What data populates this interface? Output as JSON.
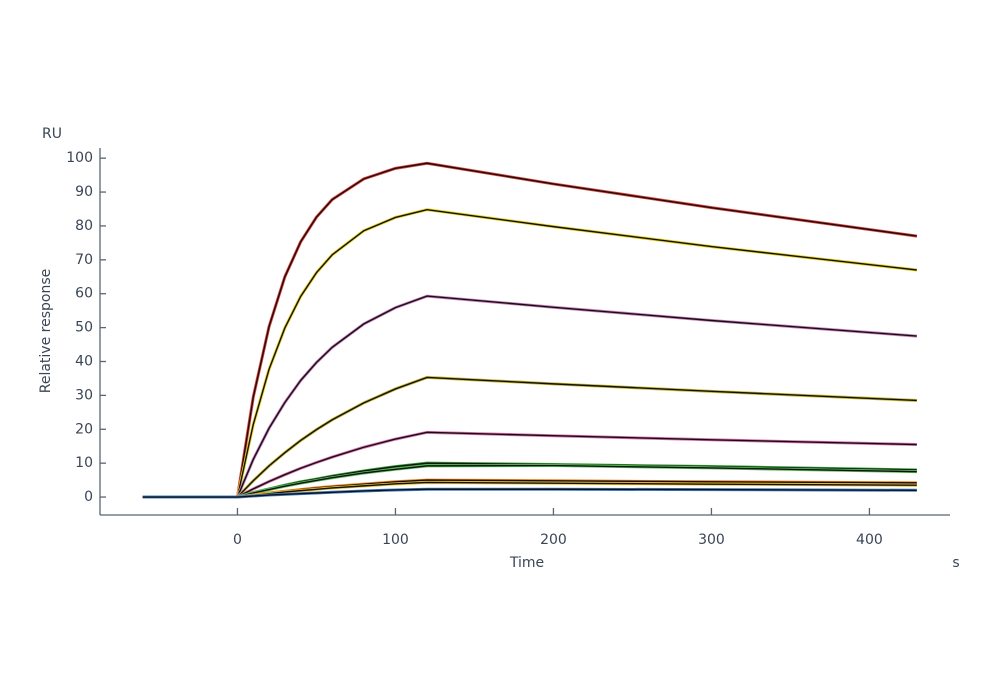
{
  "chart_data": {
    "type": "line",
    "y_unit": "RU",
    "y_label": "Relative response",
    "x_label": "Time",
    "x_unit": "s",
    "x": [
      -60,
      0,
      10,
      20,
      30,
      40,
      50,
      60,
      80,
      100,
      120,
      200,
      300,
      430
    ],
    "xlim": [
      -87,
      451
    ],
    "xticks": [
      0,
      100,
      200,
      300,
      400
    ],
    "ylim": [
      -5,
      103
    ],
    "yticks": [
      0,
      10,
      20,
      30,
      40,
      50,
      60,
      70,
      80,
      90,
      100
    ],
    "fit_color": "#111111",
    "series": [
      {
        "color": "#e8403a",
        "values": [
          0,
          0,
          29.5,
          50.3,
          65.0,
          75.3,
          82.6,
          87.8,
          93.9,
          97.0,
          98.5,
          92.4,
          85.4,
          77.0
        ]
      },
      {
        "color": "#e6d020",
        "values": [
          0,
          0,
          21.4,
          37.7,
          49.9,
          59.2,
          66.2,
          71.5,
          78.6,
          82.5,
          84.8,
          79.8,
          73.9,
          67.0
        ]
      },
      {
        "color": "#d080c0",
        "values": [
          0,
          0,
          11.1,
          20.3,
          27.9,
          34.4,
          39.7,
          44.2,
          51.1,
          55.9,
          59.3,
          56.0,
          52.1,
          47.5
        ]
      },
      {
        "color": "#c8b830",
        "values": [
          0,
          0,
          4.8,
          9.2,
          13.1,
          16.7,
          19.9,
          22.8,
          27.8,
          31.9,
          35.3,
          33.4,
          31.2,
          28.5
        ]
      },
      {
        "color": "#e070b0",
        "values": [
          0,
          0,
          2.4,
          4.6,
          6.6,
          8.5,
          10.2,
          11.8,
          14.7,
          17.1,
          19.1,
          18.1,
          16.9,
          15.5
        ]
      },
      {
        "color": "#30a030",
        "values": [
          0,
          0,
          1.3,
          2.4,
          3.5,
          4.5,
          5.3,
          6.2,
          7.7,
          9.0,
          10.0,
          9.6,
          9.0,
          8.0
        ]
      },
      {
        "color": "#60c060",
        "values": [
          0,
          0,
          1.2,
          2.2,
          3.2,
          4.1,
          4.9,
          5.7,
          7.1,
          8.2,
          9.2,
          9.3,
          8.6,
          7.5
        ]
      },
      {
        "color": "#f08020",
        "values": [
          0,
          0,
          0.6,
          1.2,
          1.7,
          2.2,
          2.7,
          3.1,
          3.8,
          4.5,
          5.0,
          4.8,
          4.5,
          4.2
        ]
      },
      {
        "color": "#e8c030",
        "values": [
          0,
          0,
          0.5,
          1.0,
          1.5,
          1.9,
          2.3,
          2.7,
          3.3,
          3.9,
          4.3,
          4.1,
          3.8,
          3.5
        ]
      },
      {
        "color": "#4080d0",
        "values": [
          0,
          0,
          0.3,
          0.6,
          0.8,
          1.0,
          1.2,
          1.4,
          1.8,
          2.1,
          2.3,
          2.3,
          2.2,
          2.0
        ]
      }
    ]
  }
}
